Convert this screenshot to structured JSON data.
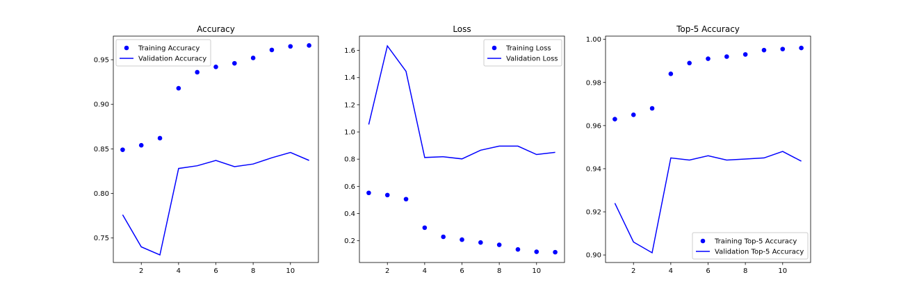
{
  "colors": {
    "series": "#0000ff",
    "axis": "#000000",
    "legend_border": "#cccccc",
    "background": "#ffffff"
  },
  "chart_data": [
    {
      "type": "scatter+line",
      "title": "Accuracy",
      "xlabel": "",
      "ylabel": "",
      "x": [
        1,
        2,
        3,
        4,
        5,
        6,
        7,
        8,
        9,
        10,
        11
      ],
      "xlim": [
        0.5,
        11.5
      ],
      "ylim": [
        0.7225,
        0.9765
      ],
      "xticks": [
        2,
        4,
        6,
        8,
        10
      ],
      "yticks": [
        0.75,
        0.8,
        0.85,
        0.9,
        0.95
      ],
      "ytick_decimals": 2,
      "grid": false,
      "legend_position": "upper-left",
      "series": [
        {
          "name": "Training Accuracy",
          "style": "markers",
          "values": [
            0.849,
            0.854,
            0.862,
            0.918,
            0.936,
            0.942,
            0.946,
            0.952,
            0.961,
            0.965,
            0.966
          ]
        },
        {
          "name": "Validation Accuracy",
          "style": "line",
          "values": [
            0.776,
            0.74,
            0.731,
            0.828,
            0.831,
            0.837,
            0.83,
            0.833,
            0.84,
            0.846,
            0.837
          ]
        }
      ]
    },
    {
      "type": "scatter+line",
      "title": "Loss",
      "xlabel": "",
      "ylabel": "",
      "x": [
        1,
        2,
        3,
        4,
        5,
        6,
        7,
        8,
        9,
        10,
        11
      ],
      "xlim": [
        0.5,
        11.5
      ],
      "ylim": [
        0.04,
        1.705
      ],
      "xticks": [
        2,
        4,
        6,
        8,
        10
      ],
      "yticks": [
        0.2,
        0.4,
        0.6,
        0.8,
        1.0,
        1.2,
        1.4,
        1.6
      ],
      "ytick_decimals": 1,
      "grid": false,
      "legend_position": "upper-right",
      "series": [
        {
          "name": "Training Loss",
          "style": "markers",
          "values": [
            0.552,
            0.536,
            0.506,
            0.296,
            0.229,
            0.208,
            0.187,
            0.17,
            0.136,
            0.119,
            0.116
          ]
        },
        {
          "name": "Validation Loss",
          "style": "line",
          "values": [
            1.055,
            1.633,
            1.446,
            0.812,
            0.818,
            0.802,
            0.866,
            0.896,
            0.896,
            0.834,
            0.85
          ]
        }
      ]
    },
    {
      "type": "scatter+line",
      "title": "Top-5 Accuracy",
      "xlabel": "",
      "ylabel": "",
      "x": [
        1,
        2,
        3,
        4,
        5,
        6,
        7,
        8,
        9,
        10,
        11
      ],
      "xlim": [
        0.5,
        11.5
      ],
      "ylim": [
        0.8965,
        1.0015
      ],
      "xticks": [
        2,
        4,
        6,
        8,
        10
      ],
      "yticks": [
        0.9,
        0.92,
        0.94,
        0.96,
        0.98,
        1.0
      ],
      "ytick_decimals": 2,
      "grid": false,
      "legend_position": "lower-right",
      "series": [
        {
          "name": "Training Top-5 Accuracy",
          "style": "markers",
          "values": [
            0.963,
            0.965,
            0.968,
            0.984,
            0.989,
            0.991,
            0.992,
            0.993,
            0.995,
            0.9955,
            0.996
          ]
        },
        {
          "name": "Validation Top-5 Accuracy",
          "style": "line",
          "values": [
            0.924,
            0.906,
            0.901,
            0.945,
            0.944,
            0.946,
            0.944,
            0.9445,
            0.945,
            0.948,
            0.9435
          ]
        }
      ]
    }
  ]
}
